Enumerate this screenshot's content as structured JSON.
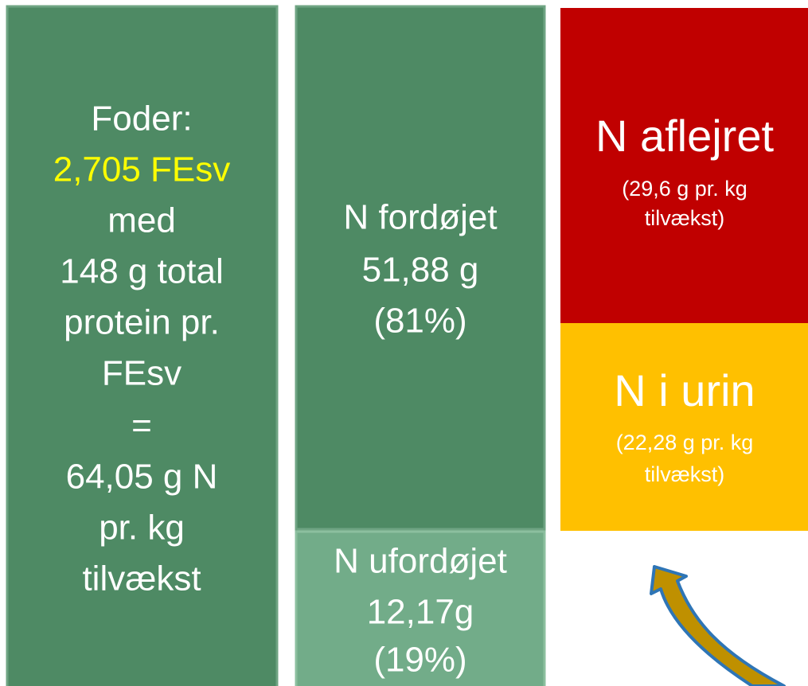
{
  "feed": {
    "lines": [
      "Foder:",
      "2,705 FEsv",
      "med",
      "148 g total",
      "protein pr.",
      "FEsv",
      "=",
      "64,05 g N",
      "pr. kg",
      "tilvækst"
    ]
  },
  "digested": {
    "lines": [
      "N fordøjet",
      "51,88 g",
      "(81%)"
    ]
  },
  "undigested": {
    "lines": [
      "N ufordøjet",
      "12,17g",
      "(19%)"
    ]
  },
  "deposited": {
    "title": "N aflejret",
    "note": [
      "(29,6 g pr. kg",
      "tilvækst)"
    ]
  },
  "urine": {
    "title": "N i urin",
    "note": [
      "(22,28 g pr. kg",
      "tilvækst)"
    ]
  }
}
